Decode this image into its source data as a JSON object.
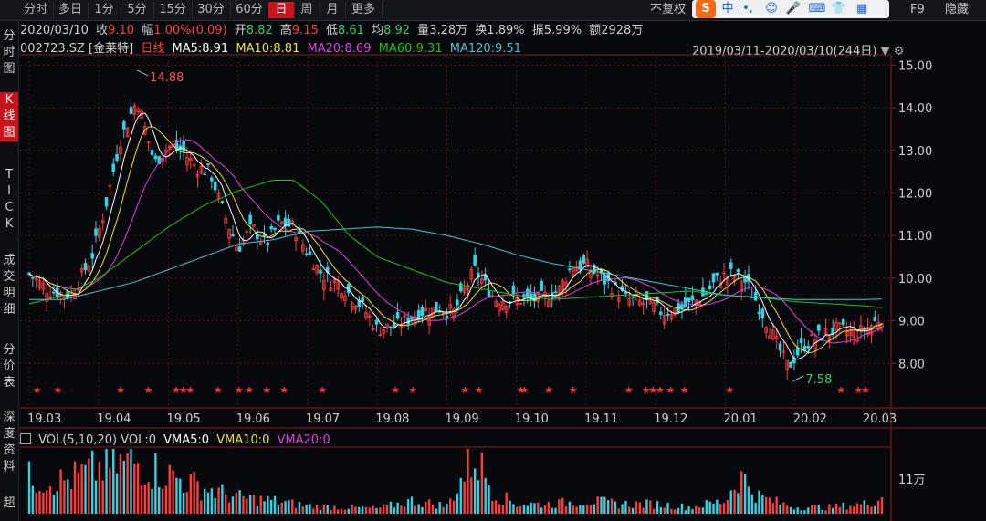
{
  "toolbar": {
    "tabs": [
      "分时",
      "多日",
      "1分",
      "5分",
      "15分",
      "30分",
      "60分",
      "日",
      "周",
      "月",
      "更多"
    ],
    "active_tab": "日",
    "adjust_label": "不复权",
    "f9_label": "F9",
    "hide_label": "隐藏"
  },
  "ime": {
    "logo": "S",
    "lang": "中"
  },
  "sidenav": {
    "items": [
      {
        "label": "分时图",
        "active": false
      },
      {
        "label": "K线图",
        "active": true
      },
      {
        "label": "TICK",
        "active": false
      },
      {
        "label": "成交明细",
        "active": false
      },
      {
        "label": "分价表",
        "active": false
      },
      {
        "label": "深度资料",
        "active": false
      },
      {
        "label": "超",
        "active": false
      }
    ]
  },
  "quote": {
    "date": "2020/03/10",
    "close_label": "收",
    "close": "9.10",
    "change_label": "幅",
    "change": "1.00%(0.09)",
    "open_label": "开",
    "open": "8.82",
    "high_label": "高",
    "high": "9.15",
    "low_label": "低",
    "low": "8.61",
    "avg_label": "均",
    "avg": "8.92",
    "volume_label": "量",
    "volume": "3.28万",
    "turnover_label": "换",
    "turnover": "1.89%",
    "amplitude_label": "振",
    "amplitude": "5.99%",
    "amount_label": "额",
    "amount": "2928万"
  },
  "ma_bar": {
    "symbol": "002723.SZ [金莱特]",
    "period": "日线",
    "ma5": "MA5:8.91",
    "ma10": "MA10:8.81",
    "ma20": "MA20:8.69",
    "ma60": "MA60:9.31",
    "ma120": "MA120:9.51",
    "range": "2019/03/11-2020/03/10(244日)"
  },
  "vol_bar": {
    "vol": "VOL(5,10,20) VOL:0",
    "vma5": "VMA5:0",
    "vma10": "VMA10:0",
    "vma20": "VMA20:0"
  },
  "colors": {
    "up": "#ff3c3c",
    "down": "#2fd4e6",
    "ma5": "#ffffff",
    "ma10": "#f2e230",
    "ma20": "#e040e0",
    "ma60": "#19c419",
    "ma120": "#40c8d8",
    "grid": "#8a1e1e",
    "axis_text": "#d0d0d0",
    "star": "#ff3030"
  },
  "chart_data": {
    "type": "candlestick",
    "y_ticks": [
      15.0,
      14.0,
      13.0,
      12.0,
      11.0,
      10.0,
      9.0,
      8.0
    ],
    "ylim": [
      7.0,
      15.2
    ],
    "x_ticks": [
      "19.03",
      "19.04",
      "19.05",
      "19.06",
      "19.07",
      "19.08",
      "19.09",
      "19.10",
      "19.11",
      "19.12",
      "20.01",
      "20.02",
      "20.03"
    ],
    "annotations": [
      {
        "text": "14.88",
        "month": 1.55,
        "value": 14.88,
        "color": "#ff5050"
      },
      {
        "text": "7.58",
        "month": 10.97,
        "value": 7.58,
        "color": "#2fd070"
      }
    ],
    "price_path": [
      [
        0,
        10.1
      ],
      [
        0.3,
        9.7
      ],
      [
        0.6,
        9.6
      ],
      [
        0.9,
        10.5
      ],
      [
        1.1,
        11.7
      ],
      [
        1.3,
        13.2
      ],
      [
        1.55,
        14.2
      ],
      [
        1.8,
        12.7
      ],
      [
        2.0,
        13.1
      ],
      [
        2.2,
        13.0
      ],
      [
        2.4,
        12.6
      ],
      [
        2.6,
        12.5
      ],
      [
        2.8,
        11.5
      ],
      [
        3.0,
        10.7
      ],
      [
        3.2,
        11.2
      ],
      [
        3.4,
        10.8
      ],
      [
        3.6,
        11.3
      ],
      [
        3.8,
        11.2
      ],
      [
        4.0,
        10.6
      ],
      [
        4.2,
        10.1
      ],
      [
        4.5,
        9.8
      ],
      [
        4.8,
        9.3
      ],
      [
        5.0,
        8.8
      ],
      [
        5.3,
        8.9
      ],
      [
        5.6,
        9.2
      ],
      [
        5.9,
        9.3
      ],
      [
        6.1,
        9.2
      ],
      [
        6.4,
        10.2
      ],
      [
        6.7,
        9.5
      ],
      [
        7.0,
        9.5
      ],
      [
        7.3,
        9.5
      ],
      [
        7.6,
        9.7
      ],
      [
        7.8,
        10.3
      ],
      [
        8.0,
        10.3
      ],
      [
        8.3,
        9.9
      ],
      [
        8.6,
        9.5
      ],
      [
        8.9,
        9.4
      ],
      [
        9.1,
        9.2
      ],
      [
        9.4,
        9.3
      ],
      [
        9.7,
        9.6
      ],
      [
        9.9,
        10.0
      ],
      [
        10.1,
        10.1
      ],
      [
        10.3,
        9.9
      ],
      [
        10.5,
        9.3
      ],
      [
        10.7,
        8.6
      ],
      [
        10.9,
        7.9
      ],
      [
        11.1,
        8.4
      ],
      [
        11.3,
        8.6
      ],
      [
        11.6,
        8.8
      ],
      [
        11.9,
        8.7
      ],
      [
        12.1,
        8.9
      ],
      [
        12.25,
        9.1
      ]
    ],
    "ma120_path": [
      [
        0,
        9.5
      ],
      [
        0.5,
        9.5
      ],
      [
        1,
        9.7
      ],
      [
        1.5,
        9.9
      ],
      [
        2,
        10.2
      ],
      [
        2.5,
        10.5
      ],
      [
        3,
        10.8
      ],
      [
        3.5,
        10.9
      ],
      [
        4,
        11.1
      ],
      [
        4.5,
        11.15
      ],
      [
        5,
        11.2
      ],
      [
        5.5,
        11.15
      ],
      [
        6,
        11.0
      ],
      [
        6.5,
        10.8
      ],
      [
        7,
        10.55
      ],
      [
        7.5,
        10.35
      ],
      [
        8,
        10.2
      ],
      [
        8.5,
        10.05
      ],
      [
        9,
        9.9
      ],
      [
        9.5,
        9.75
      ],
      [
        10,
        9.6
      ],
      [
        10.5,
        9.55
      ],
      [
        11,
        9.5
      ],
      [
        11.5,
        9.5
      ],
      [
        12,
        9.5
      ],
      [
        12.25,
        9.51
      ]
    ],
    "ma60_path": [
      [
        0,
        9.4
      ],
      [
        0.5,
        9.6
      ],
      [
        1,
        10.0
      ],
      [
        1.5,
        10.6
      ],
      [
        2,
        11.2
      ],
      [
        2.5,
        11.7
      ],
      [
        3,
        12.05
      ],
      [
        3.5,
        12.3
      ],
      [
        3.8,
        12.3
      ],
      [
        4.2,
        11.8
      ],
      [
        4.6,
        11.0
      ],
      [
        5,
        10.5
      ],
      [
        5.5,
        10.2
      ],
      [
        6,
        9.9
      ],
      [
        6.5,
        9.75
      ],
      [
        7,
        9.6
      ],
      [
        7.5,
        9.5
      ],
      [
        8,
        9.55
      ],
      [
        8.5,
        9.6
      ],
      [
        9,
        9.65
      ],
      [
        9.5,
        9.7
      ],
      [
        10,
        9.6
      ],
      [
        10.5,
        9.55
      ],
      [
        11,
        9.45
      ],
      [
        11.5,
        9.4
      ],
      [
        12,
        9.35
      ],
      [
        12.25,
        9.31
      ]
    ],
    "volume_path": [
      [
        0,
        0.55
      ],
      [
        0.5,
        0.5
      ],
      [
        1,
        0.7
      ],
      [
        1.5,
        0.8
      ],
      [
        2,
        0.6
      ],
      [
        2.5,
        0.4
      ],
      [
        3,
        0.25
      ],
      [
        3.5,
        0.2
      ],
      [
        4,
        0.12
      ],
      [
        4.5,
        0.1
      ],
      [
        5,
        0.08
      ],
      [
        5.5,
        0.2
      ],
      [
        6,
        0.12
      ],
      [
        6.4,
        0.9
      ],
      [
        6.7,
        0.3
      ],
      [
        7,
        0.15
      ],
      [
        7.5,
        0.15
      ],
      [
        8,
        0.2
      ],
      [
        8.5,
        0.15
      ],
      [
        9,
        0.15
      ],
      [
        9.5,
        0.1
      ],
      [
        10,
        0.2
      ],
      [
        10.2,
        0.6
      ],
      [
        10.5,
        0.25
      ],
      [
        11,
        0.1
      ],
      [
        11.5,
        0.1
      ],
      [
        12,
        0.15
      ],
      [
        12.25,
        0.25
      ]
    ],
    "volume_tick": "11万",
    "star_months": [
      0.1,
      0.4,
      1.3,
      1.7,
      2.1,
      2.2,
      2.3,
      2.7,
      3.0,
      3.15,
      3.4,
      3.65,
      4.2,
      5.25,
      5.5,
      6.25,
      6.45,
      7.05,
      7.1,
      7.45,
      7.8,
      8.6,
      8.85,
      8.95,
      9.05,
      9.2,
      9.4,
      10.05,
      11.65,
      11.9,
      12.0
    ]
  }
}
